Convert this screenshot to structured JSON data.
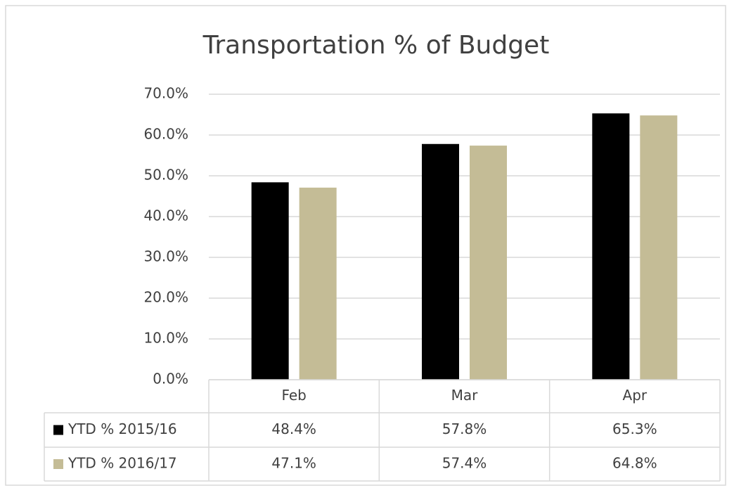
{
  "chart_data": {
    "type": "bar",
    "title": "Transportation % of Budget",
    "categories": [
      "Feb",
      "Mar",
      "Apr"
    ],
    "series": [
      {
        "name": "YTD % 2015/16",
        "color": "#000000",
        "values": [
          48.4,
          57.8,
          65.3
        ],
        "value_labels": [
          "48.4%",
          "57.8%",
          "65.3%"
        ]
      },
      {
        "name": "YTD % 2016/17",
        "color": "#c4bc96",
        "values": [
          47.1,
          57.4,
          64.8
        ],
        "value_labels": [
          "47.1%",
          "57.4%",
          "64.8%"
        ]
      }
    ],
    "ylim": [
      0,
      70
    ],
    "yticks": [
      {
        "value": 0,
        "label": "0.0%"
      },
      {
        "value": 10,
        "label": "10.0%"
      },
      {
        "value": 20,
        "label": "20.0%"
      },
      {
        "value": 30,
        "label": "30.0%"
      },
      {
        "value": 40,
        "label": "40.0%"
      },
      {
        "value": 50,
        "label": "50.0%"
      },
      {
        "value": 60,
        "label": "60.0%"
      },
      {
        "value": 70,
        "label": "70.0%"
      }
    ],
    "grid": true
  }
}
